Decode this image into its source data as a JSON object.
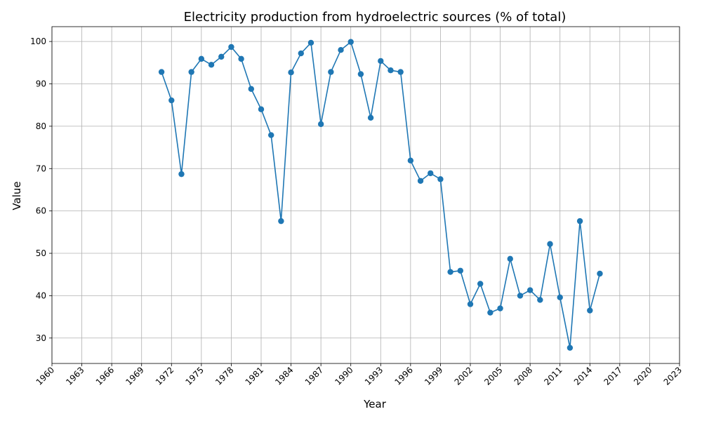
{
  "chart_data": {
    "type": "line",
    "title": "Electricity production from hydroelectric sources (% of total)",
    "xlabel": "Year",
    "ylabel": "Value",
    "xlim": [
      1960,
      2023
    ],
    "ylim": [
      24,
      103.5
    ],
    "x_ticks": [
      "1960",
      "1963",
      "1966",
      "1969",
      "1972",
      "1975",
      "1978",
      "1981",
      "1984",
      "1987",
      "1990",
      "1993",
      "1996",
      "1999",
      "2002",
      "2005",
      "2008",
      "2011",
      "2014",
      "2017",
      "2020",
      "2023"
    ],
    "y_ticks": [
      "30",
      "40",
      "50",
      "60",
      "70",
      "80",
      "90",
      "100"
    ],
    "grid": true,
    "color": "#1f77b4",
    "series": [
      {
        "x": [
          1971,
          1972,
          1973,
          1974,
          1975,
          1976,
          1977,
          1978,
          1979,
          1980,
          1981,
          1982,
          1983,
          1984,
          1985,
          1986,
          1987,
          1988,
          1989,
          1990,
          1991,
          1992,
          1993,
          1994,
          1995,
          1996,
          1997,
          1998,
          1999,
          2000,
          2001,
          2002,
          2003,
          2004,
          2005,
          2006,
          2007,
          2008,
          2009,
          2010,
          2011,
          2012,
          2013,
          2014,
          2015
        ],
        "y": [
          92.8,
          86.1,
          68.7,
          92.8,
          95.9,
          94.5,
          96.4,
          98.7,
          95.9,
          88.8,
          84.0,
          77.9,
          57.6,
          92.7,
          97.2,
          99.7,
          80.5,
          92.8,
          98.0,
          99.9,
          92.3,
          82.0,
          95.4,
          93.2,
          92.8,
          71.9,
          67.1,
          68.9,
          67.5,
          45.6,
          45.9,
          38.0,
          42.8,
          36.0,
          37.0,
          48.7,
          40.0,
          41.3,
          39.0,
          52.2,
          39.6,
          27.7,
          57.6,
          36.5,
          45.2
        ]
      }
    ]
  }
}
